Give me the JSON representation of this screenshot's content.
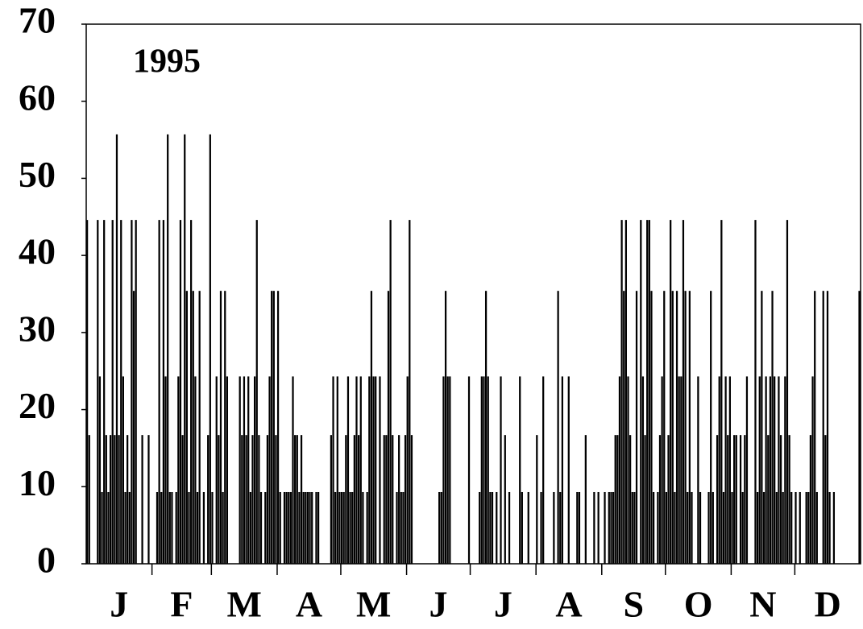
{
  "chart_data": {
    "type": "bar",
    "annotation": "1995",
    "color": "#000000",
    "ylim": [
      0,
      70
    ],
    "yticks": [
      0,
      10,
      20,
      30,
      40,
      50,
      60,
      70
    ],
    "months": [
      {
        "label": "J",
        "values": [
          44.6,
          16.7,
          0,
          0,
          0,
          44.6,
          24.3,
          9.3,
          44.6,
          16.7,
          9.3,
          16.7,
          44.6,
          16.7,
          55.7,
          16.7,
          44.6,
          24.3,
          9.3,
          16.7,
          9.3,
          44.6,
          35.4,
          44.6,
          0,
          0,
          16.7,
          0,
          0,
          16.7,
          0
        ]
      },
      {
        "label": "F",
        "values": [
          0,
          0,
          9.3,
          44.6,
          9.3,
          44.6,
          24.3,
          55.7,
          9.3,
          9.3,
          0,
          9.3,
          24.3,
          44.6,
          16.7,
          55.7,
          35.4,
          9.3,
          44.6,
          35.4,
          24.3,
          9.3,
          35.4,
          0,
          9.3,
          0,
          16.7,
          55.7
        ]
      },
      {
        "label": "M",
        "values": [
          9.3,
          0,
          24.3,
          16.7,
          35.4,
          9.3,
          35.4,
          24.3,
          0,
          0,
          0,
          0,
          0,
          24.3,
          16.7,
          24.3,
          16.7,
          24.3,
          9.3,
          16.7,
          24.3,
          44.6,
          16.7,
          9.3,
          0,
          9.3,
          16.7,
          24.3,
          35.4,
          35.4,
          16.7
        ]
      },
      {
        "label": "A",
        "values": [
          35.4,
          9.3,
          0,
          9.3,
          9.3,
          9.3,
          9.3,
          24.3,
          16.7,
          16.7,
          9.3,
          16.7,
          9.3,
          9.3,
          9.3,
          9.3,
          9.3,
          0,
          9.3,
          9.3,
          0,
          0,
          0,
          0,
          0,
          16.7,
          24.3,
          9.3,
          24.3,
          9.3
        ]
      },
      {
        "label": "M",
        "values": [
          9.3,
          9.3,
          16.7,
          24.3,
          9.3,
          9.3,
          16.7,
          24.3,
          16.7,
          24.3,
          9.3,
          0,
          9.3,
          24.3,
          35.4,
          24.3,
          24.3,
          0,
          24.3,
          0,
          16.7,
          16.7,
          35.4,
          44.6,
          16.7,
          0,
          9.3,
          16.7,
          9.3,
          9.3,
          16.7
        ]
      },
      {
        "label": "J",
        "values": [
          24.3,
          44.6,
          16.7,
          0,
          0,
          0,
          0,
          0,
          0,
          0,
          0,
          0,
          0,
          0,
          0,
          9.3,
          9.3,
          24.3,
          35.4,
          24.3,
          24.3,
          0,
          0,
          0,
          0,
          0,
          0,
          0,
          0,
          24.3
        ]
      },
      {
        "label": "J",
        "values": [
          0,
          0,
          0,
          0,
          9.3,
          24.3,
          24.3,
          35.4,
          24.3,
          9.3,
          9.3,
          0,
          9.3,
          0,
          24.3,
          0,
          16.7,
          0,
          9.3,
          0,
          0,
          0,
          0,
          24.3,
          9.3,
          0,
          0,
          9.3,
          0,
          0,
          0
        ]
      },
      {
        "label": "A",
        "values": [
          16.7,
          0,
          9.3,
          24.3,
          0,
          0,
          0,
          0,
          9.3,
          0,
          35.4,
          9.3,
          24.3,
          0,
          0,
          24.3,
          0,
          0,
          0,
          9.3,
          9.3,
          0,
          0,
          16.7,
          0,
          0,
          0,
          9.3,
          0,
          9.3,
          0
        ]
      },
      {
        "label": "S",
        "values": [
          0,
          9.3,
          0,
          9.3,
          9.3,
          9.3,
          16.7,
          16.7,
          24.3,
          44.6,
          35.4,
          44.6,
          24.3,
          16.7,
          9.3,
          9.3,
          35.4,
          0,
          44.6,
          24.3,
          16.7,
          44.6,
          44.6,
          35.4,
          9.3,
          0,
          9.3,
          16.7,
          24.3,
          35.4
        ]
      },
      {
        "label": "O",
        "values": [
          9.3,
          16.7,
          44.6,
          35.4,
          9.3,
          35.4,
          24.3,
          24.3,
          44.6,
          35.4,
          9.3,
          35.4,
          9.3,
          0,
          0,
          24.3,
          9.3,
          0,
          0,
          0,
          9.3,
          35.4,
          9.3,
          0,
          16.7,
          24.3,
          44.6,
          9.3,
          24.3,
          16.7,
          24.3
        ]
      },
      {
        "label": "N",
        "values": [
          9.3,
          16.7,
          16.7,
          0,
          16.7,
          9.3,
          16.7,
          24.3,
          0,
          0,
          0,
          44.6,
          9.3,
          24.3,
          35.4,
          9.3,
          24.3,
          16.7,
          24.3,
          35.4,
          24.3,
          9.3,
          24.3,
          16.7,
          9.3,
          24.3,
          44.6,
          16.7,
          9.3,
          0
        ]
      },
      {
        "label": "D",
        "values": [
          9.3,
          0,
          9.3,
          0,
          0,
          9.3,
          9.3,
          16.7,
          24.3,
          35.4,
          9.3,
          0,
          0,
          35.4,
          16.7,
          35.4,
          9.3,
          0,
          9.3,
          0,
          0,
          0,
          0,
          0,
          0,
          0,
          0,
          0,
          0,
          0,
          35.4
        ]
      }
    ]
  }
}
